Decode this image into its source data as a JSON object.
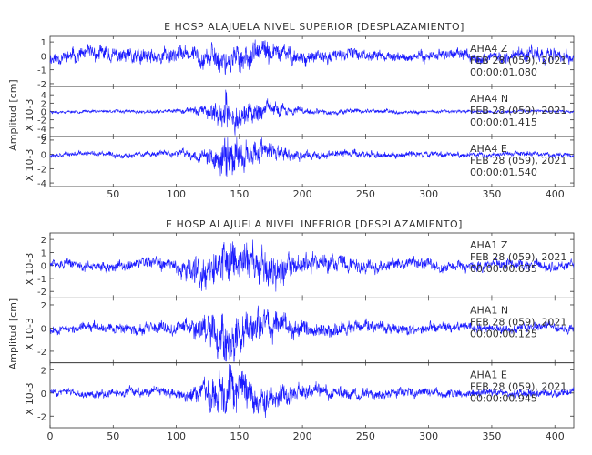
{
  "figure_title_top": "E HOSP ALAJUELA NIVEL SUPERIOR [DESPLAZAMIENTO]",
  "figure_title_bottom": "E HOSP ALAJUELA NIVEL INFERIOR [DESPLAZAMIENTO]",
  "colors": {
    "trace": "#1a1aff",
    "axes": "#333333",
    "background": "#ffffff"
  },
  "chart_data": [
    {
      "type": "line",
      "title": "E HOSP ALAJUELA NIVEL SUPERIOR [DESPLAZAMIENTO]",
      "ylabel": "Amplitud [cm]",
      "xlim": [
        0,
        415
      ],
      "xticks": [
        50,
        100,
        150,
        200,
        250,
        300,
        350,
        400
      ],
      "panels": [
        {
          "channel": "AHA4 Z",
          "date": "FEB 28 (059), 2021",
          "time": "00:00:01.080",
          "scale_label": "",
          "ylim": [
            -2.2,
            1.4
          ],
          "yticks": [
            1,
            0,
            -1,
            -2
          ],
          "envelope": {
            "x": [
              0,
              60,
              80,
              110,
              125,
              150,
              175,
              200,
              250,
              300,
              350,
              395,
              415
            ],
            "amp": [
              0.55,
              0.7,
              0.85,
              0.6,
              1.0,
              1.2,
              0.9,
              0.6,
              0.5,
              0.45,
              0.45,
              0.7,
              0.6
            ]
          },
          "seed": 11
        },
        {
          "channel": "AHA4 N",
          "date": "FEB 28 (059), 2021",
          "time": "00:00:01.415",
          "scale_label": "X 10-3",
          "ylim": [
            -6,
            6
          ],
          "yticks": [
            4,
            2,
            0,
            -2,
            -4,
            -6
          ],
          "envelope": {
            "x": [
              0,
              100,
              120,
              140,
              160,
              185,
              210,
              260,
              320,
              415
            ],
            "amp": [
              0.35,
              0.5,
              1.5,
              5.0,
              3.0,
              1.5,
              0.8,
              0.6,
              0.45,
              0.4
            ]
          },
          "seed": 23
        },
        {
          "channel": "AHA4 E",
          "date": "FEB 28 (059), 2021",
          "time": "00:00:01.540",
          "scale_label": "X 10-3",
          "ylim": [
            -4.5,
            2.5
          ],
          "yticks": [
            2,
            0,
            -2,
            -4
          ],
          "envelope": {
            "x": [
              0,
              100,
              120,
              140,
              160,
              185,
              210,
              260,
              320,
              415
            ],
            "amp": [
              0.4,
              0.5,
              1.2,
              3.8,
              2.4,
              1.2,
              0.7,
              0.6,
              0.5,
              0.4
            ]
          },
          "seed": 37
        }
      ]
    },
    {
      "type": "line",
      "title": "E HOSP ALAJUELA NIVEL INFERIOR [DESPLAZAMIENTO]",
      "ylabel": "Amplitud [cm]",
      "xlim": [
        0,
        415
      ],
      "xticks": [
        0,
        50,
        100,
        150,
        200,
        250,
        300,
        350,
        400
      ],
      "panels": [
        {
          "channel": "AHA1 Z",
          "date": "FEB 28 (059), 2021",
          "time": "00:00:00.635",
          "scale_label": "X 10-3",
          "ylim": [
            -2.5,
            2.5
          ],
          "yticks": [
            2,
            1,
            0,
            -1,
            -2
          ],
          "envelope": {
            "x": [
              0,
              100,
              120,
              140,
              160,
              175,
              200,
              260,
              320,
              415
            ],
            "amp": [
              0.4,
              0.6,
              1.8,
              2.0,
              1.7,
              1.8,
              0.9,
              0.6,
              0.5,
              0.45
            ]
          },
          "seed": 51
        },
        {
          "channel": "AHA1 N",
          "date": "FEB 28 (059), 2021",
          "time": "00:00:00.125",
          "scale_label": "X 10-3",
          "ylim": [
            -3,
            2.6
          ],
          "yticks": [
            2,
            0,
            -2
          ],
          "envelope": {
            "x": [
              0,
              100,
              120,
              140,
              160,
              185,
              210,
              260,
              320,
              415
            ],
            "amp": [
              0.45,
              0.6,
              1.3,
              2.6,
              2.0,
              1.2,
              0.8,
              0.6,
              0.5,
              0.45
            ]
          },
          "seed": 67
        },
        {
          "channel": "AHA1 E",
          "date": "FEB 28 (059), 2021",
          "time": "00:00:00.945",
          "scale_label": "X 10-3",
          "ylim": [
            -3,
            2.6
          ],
          "yticks": [
            2,
            0,
            -2
          ],
          "envelope": {
            "x": [
              0,
              100,
              120,
              140,
              160,
              185,
              210,
              260,
              320,
              415
            ],
            "amp": [
              0.35,
              0.5,
              1.2,
              2.7,
              1.9,
              1.1,
              0.7,
              0.55,
              0.45,
              0.4
            ]
          },
          "seed": 83
        }
      ]
    }
  ]
}
